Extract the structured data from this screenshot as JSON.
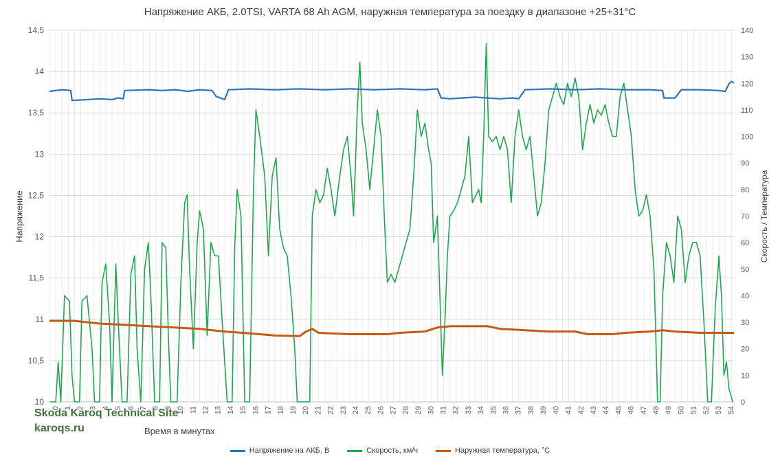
{
  "chart_data": {
    "type": "line",
    "title": "Напряжение АКБ, 2.0TSI, VARTA 68 Ah AGM, наружная температура за поездку в диапазоне +25+31°C",
    "xlabel": "Время в минутах",
    "ylabel_left": "Напряжение",
    "ylabel_right": "Скорость / Температура",
    "x_ticks": [
      "0",
      "1",
      "2",
      "3",
      "4",
      "5",
      "6",
      "7",
      "8",
      "9",
      "10",
      "11",
      "12",
      "13",
      "14",
      "15",
      "16",
      "17",
      "18",
      "19",
      "20",
      "21",
      "22",
      "23",
      "24",
      "25",
      "26",
      "27",
      "28",
      "29",
      "30",
      "31",
      "32",
      "33",
      "34",
      "35",
      "36",
      "37",
      "38",
      "39",
      "40",
      "41",
      "42",
      "43",
      "44",
      "45",
      "46",
      "47",
      "48",
      "49",
      "50",
      "51",
      "52",
      "53",
      "54"
    ],
    "xlim": [
      0,
      54.7
    ],
    "ylim_left": [
      10,
      14.5
    ],
    "y_left_ticks": [
      "10",
      "10,5",
      "11",
      "11,5",
      "12",
      "12,5",
      "13",
      "13,5",
      "14",
      "14,5"
    ],
    "ylim_right": [
      0,
      140
    ],
    "y_right_ticks": [
      "0",
      "10",
      "20",
      "30",
      "40",
      "50",
      "60",
      "70",
      "80",
      "90",
      "100",
      "110",
      "120",
      "130",
      "140"
    ],
    "grid": true,
    "legend_position": "bottom",
    "series": [
      {
        "name": "Напряжение на АКБ, В",
        "axis": "left",
        "color": "#2e75b6",
        "points": [
          [
            0,
            13.76
          ],
          [
            1.0,
            13.78
          ],
          [
            1.7,
            13.77
          ],
          [
            1.8,
            13.65
          ],
          [
            3.0,
            13.66
          ],
          [
            4.0,
            13.67
          ],
          [
            5.0,
            13.66
          ],
          [
            5.5,
            13.68
          ],
          [
            5.9,
            13.67
          ],
          [
            6.0,
            13.77
          ],
          [
            8.0,
            13.78
          ],
          [
            9.0,
            13.77
          ],
          [
            10.0,
            13.78
          ],
          [
            10.6,
            13.77
          ],
          [
            11.0,
            13.76
          ],
          [
            12.0,
            13.78
          ],
          [
            13.0,
            13.77
          ],
          [
            13.3,
            13.7
          ],
          [
            14.0,
            13.66
          ],
          [
            14.3,
            13.78
          ],
          [
            16.0,
            13.79
          ],
          [
            18.0,
            13.78
          ],
          [
            20.0,
            13.79
          ],
          [
            22.0,
            13.78
          ],
          [
            24.0,
            13.79
          ],
          [
            26.0,
            13.78
          ],
          [
            28.0,
            13.79
          ],
          [
            30.0,
            13.78
          ],
          [
            31.0,
            13.79
          ],
          [
            31.3,
            13.68
          ],
          [
            32.0,
            13.67
          ],
          [
            33.0,
            13.68
          ],
          [
            34.0,
            13.69
          ],
          [
            35.0,
            13.68
          ],
          [
            36.0,
            13.67
          ],
          [
            37.0,
            13.68
          ],
          [
            37.5,
            13.67
          ],
          [
            38.0,
            13.78
          ],
          [
            40.0,
            13.79
          ],
          [
            42.0,
            13.78
          ],
          [
            44.0,
            13.79
          ],
          [
            46.0,
            13.78
          ],
          [
            48.0,
            13.78
          ],
          [
            49.0,
            13.77
          ],
          [
            49.1,
            13.68
          ],
          [
            50.0,
            13.68
          ],
          [
            50.5,
            13.78
          ],
          [
            52.0,
            13.78
          ],
          [
            53.5,
            13.77
          ],
          [
            54.0,
            13.76
          ],
          [
            54.3,
            13.85
          ],
          [
            54.5,
            13.88
          ],
          [
            54.7,
            13.86
          ]
        ]
      },
      {
        "name": "Скорость, км/ч",
        "axis": "right",
        "color": "#1ea84d",
        "points": [
          [
            0,
            0
          ],
          [
            0.5,
            0
          ],
          [
            0.7,
            15
          ],
          [
            0.9,
            0
          ],
          [
            1.2,
            40
          ],
          [
            1.6,
            38
          ],
          [
            1.8,
            10
          ],
          [
            2.0,
            0
          ],
          [
            2.4,
            0
          ],
          [
            2.6,
            38
          ],
          [
            3.0,
            40
          ],
          [
            3.4,
            20
          ],
          [
            3.6,
            0
          ],
          [
            4.0,
            0
          ],
          [
            4.2,
            45
          ],
          [
            4.5,
            52
          ],
          [
            4.8,
            30
          ],
          [
            5.0,
            0
          ],
          [
            5.3,
            52
          ],
          [
            5.5,
            30
          ],
          [
            5.8,
            0
          ],
          [
            6.2,
            0
          ],
          [
            6.5,
            48
          ],
          [
            6.8,
            55
          ],
          [
            7.0,
            20
          ],
          [
            7.3,
            0
          ],
          [
            7.6,
            50
          ],
          [
            7.9,
            60
          ],
          [
            8.1,
            40
          ],
          [
            8.4,
            0
          ],
          [
            8.8,
            0
          ],
          [
            9.0,
            60
          ],
          [
            9.3,
            58
          ],
          [
            9.5,
            25
          ],
          [
            9.7,
            0
          ],
          [
            10.2,
            0
          ],
          [
            10.5,
            45
          ],
          [
            10.8,
            75
          ],
          [
            11.0,
            78
          ],
          [
            11.2,
            50
          ],
          [
            11.5,
            20
          ],
          [
            11.8,
            60
          ],
          [
            12.0,
            72
          ],
          [
            12.3,
            65
          ],
          [
            12.6,
            25
          ],
          [
            12.9,
            60
          ],
          [
            13.2,
            55
          ],
          [
            13.5,
            55
          ],
          [
            13.8,
            30
          ],
          [
            14.2,
            0
          ],
          [
            14.6,
            0
          ],
          [
            14.8,
            58
          ],
          [
            15.0,
            80
          ],
          [
            15.3,
            70
          ],
          [
            15.6,
            0
          ],
          [
            16.0,
            0
          ],
          [
            16.3,
            80
          ],
          [
            16.5,
            110
          ],
          [
            16.8,
            100
          ],
          [
            17.2,
            85
          ],
          [
            17.5,
            55
          ],
          [
            17.8,
            85
          ],
          [
            18.1,
            92
          ],
          [
            18.4,
            65
          ],
          [
            18.7,
            58
          ],
          [
            19.0,
            55
          ],
          [
            19.3,
            40
          ],
          [
            19.6,
            20
          ],
          [
            19.8,
            0
          ],
          [
            20.5,
            0
          ],
          [
            20.8,
            0
          ],
          [
            21.0,
            70
          ],
          [
            21.3,
            80
          ],
          [
            21.6,
            75
          ],
          [
            21.9,
            78
          ],
          [
            22.2,
            88
          ],
          [
            22.5,
            80
          ],
          [
            22.8,
            70
          ],
          [
            23.2,
            85
          ],
          [
            23.5,
            95
          ],
          [
            23.8,
            100
          ],
          [
            24.1,
            85
          ],
          [
            24.3,
            70
          ],
          [
            24.6,
            110
          ],
          [
            24.8,
            128
          ],
          [
            25.0,
            105
          ],
          [
            25.3,
            95
          ],
          [
            25.6,
            80
          ],
          [
            25.9,
            95
          ],
          [
            26.2,
            110
          ],
          [
            26.5,
            100
          ],
          [
            26.8,
            65
          ],
          [
            27.0,
            45
          ],
          [
            27.3,
            48
          ],
          [
            27.6,
            45
          ],
          [
            27.9,
            50
          ],
          [
            28.2,
            55
          ],
          [
            28.5,
            60
          ],
          [
            28.8,
            65
          ],
          [
            29.1,
            85
          ],
          [
            29.4,
            110
          ],
          [
            29.7,
            100
          ],
          [
            30.0,
            105
          ],
          [
            30.3,
            95
          ],
          [
            30.5,
            90
          ],
          [
            30.7,
            60
          ],
          [
            31.0,
            70
          ],
          [
            31.2,
            40
          ],
          [
            31.4,
            10
          ],
          [
            31.6,
            30
          ],
          [
            31.8,
            55
          ],
          [
            32.0,
            70
          ],
          [
            32.3,
            72
          ],
          [
            32.6,
            75
          ],
          [
            32.9,
            80
          ],
          [
            33.2,
            85
          ],
          [
            33.5,
            100
          ],
          [
            33.8,
            75
          ],
          [
            34.1,
            78
          ],
          [
            34.3,
            80
          ],
          [
            34.5,
            75
          ],
          [
            34.7,
            100
          ],
          [
            34.9,
            135
          ],
          [
            35.1,
            100
          ],
          [
            35.4,
            98
          ],
          [
            35.7,
            100
          ],
          [
            36.0,
            95
          ],
          [
            36.3,
            100
          ],
          [
            36.6,
            95
          ],
          [
            36.9,
            75
          ],
          [
            37.2,
            100
          ],
          [
            37.5,
            110
          ],
          [
            37.8,
            100
          ],
          [
            38.1,
            95
          ],
          [
            38.4,
            100
          ],
          [
            38.7,
            85
          ],
          [
            39.0,
            70
          ],
          [
            39.3,
            75
          ],
          [
            39.6,
            90
          ],
          [
            39.9,
            110
          ],
          [
            40.2,
            115
          ],
          [
            40.5,
            120
          ],
          [
            40.8,
            115
          ],
          [
            41.1,
            112
          ],
          [
            41.4,
            120
          ],
          [
            41.7,
            115
          ],
          [
            42.0,
            122
          ],
          [
            42.3,
            115
          ],
          [
            42.6,
            95
          ],
          [
            42.9,
            105
          ],
          [
            43.2,
            112
          ],
          [
            43.5,
            105
          ],
          [
            43.8,
            110
          ],
          [
            44.1,
            108
          ],
          [
            44.4,
            112
          ],
          [
            44.7,
            105
          ],
          [
            45.0,
            100
          ],
          [
            45.3,
            100
          ],
          [
            45.6,
            115
          ],
          [
            45.9,
            120
          ],
          [
            46.2,
            110
          ],
          [
            46.5,
            100
          ],
          [
            46.8,
            80
          ],
          [
            47.1,
            70
          ],
          [
            47.4,
            72
          ],
          [
            47.7,
            78
          ],
          [
            48.0,
            70
          ],
          [
            48.3,
            50
          ],
          [
            48.6,
            0
          ],
          [
            48.8,
            0
          ],
          [
            49.0,
            40
          ],
          [
            49.3,
            60
          ],
          [
            49.6,
            55
          ],
          [
            49.9,
            45
          ],
          [
            50.2,
            70
          ],
          [
            50.5,
            65
          ],
          [
            50.8,
            45
          ],
          [
            51.1,
            55
          ],
          [
            51.4,
            60
          ],
          [
            51.7,
            60
          ],
          [
            52.0,
            55
          ],
          [
            52.3,
            30
          ],
          [
            52.6,
            0
          ],
          [
            52.9,
            0
          ],
          [
            53.2,
            35
          ],
          [
            53.5,
            55
          ],
          [
            53.7,
            40
          ],
          [
            53.9,
            10
          ],
          [
            54.1,
            15
          ],
          [
            54.3,
            5
          ],
          [
            54.6,
            0
          ]
        ]
      },
      {
        "name": "Наружная температура, °C",
        "axis": "right",
        "color": "#c55a11",
        "points": [
          [
            0,
            30.5
          ],
          [
            2.0,
            30.5
          ],
          [
            4.0,
            29.5
          ],
          [
            6.0,
            29.0
          ],
          [
            8.0,
            28.5
          ],
          [
            10.0,
            28.0
          ],
          [
            12.0,
            27.5
          ],
          [
            14.0,
            26.5
          ],
          [
            16.0,
            25.8
          ],
          [
            18.0,
            25.0
          ],
          [
            20.0,
            24.8
          ],
          [
            20.5,
            26.5
          ],
          [
            21.0,
            27.5
          ],
          [
            21.5,
            26.0
          ],
          [
            24.0,
            25.5
          ],
          [
            27.0,
            25.5
          ],
          [
            28.0,
            26.0
          ],
          [
            30.0,
            26.5
          ],
          [
            31.0,
            28.0
          ],
          [
            32.0,
            28.5
          ],
          [
            35.0,
            28.5
          ],
          [
            36.0,
            27.5
          ],
          [
            38.0,
            27.0
          ],
          [
            40.0,
            26.5
          ],
          [
            42.0,
            26.5
          ],
          [
            43.0,
            25.5
          ],
          [
            45.0,
            25.5
          ],
          [
            46.0,
            26.0
          ],
          [
            48.0,
            26.5
          ],
          [
            49.0,
            27.0
          ],
          [
            50.0,
            26.5
          ],
          [
            52.0,
            26.0
          ],
          [
            53.0,
            26.0
          ],
          [
            54.7,
            26.0
          ]
        ]
      }
    ]
  },
  "brand": {
    "line1": "Skoda Karoq Technical Site",
    "line2": "karoqs.ru"
  },
  "legend": {
    "item0": "Напряжение на АКБ, В",
    "item1": "Скорость, км/ч",
    "item2": "Наружная температура, °C"
  }
}
